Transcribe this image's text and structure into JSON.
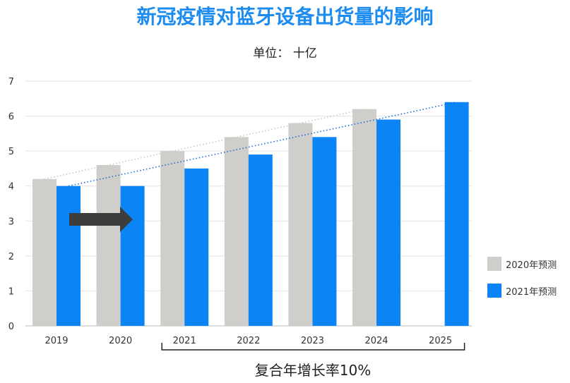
{
  "chart_data": {
    "type": "bar",
    "title": "新冠疫情对蓝牙设备出货量的影响",
    "subtitle": "单位： 十亿",
    "categories": [
      "2019",
      "2020",
      "2021",
      "2022",
      "2023",
      "2024",
      "2025"
    ],
    "series": [
      {
        "name": "2020年预测",
        "color": "#cfcecb",
        "values": [
          4.2,
          4.6,
          5.0,
          5.4,
          5.8,
          6.2,
          null
        ]
      },
      {
        "name": "2021年预测",
        "color": "#0b84f5",
        "values": [
          4.0,
          4.0,
          4.5,
          4.9,
          5.4,
          5.9,
          6.4
        ]
      }
    ],
    "ylim": [
      0,
      7
    ],
    "yticks": [
      "0",
      "1",
      "2",
      "3",
      "4",
      "5",
      "6",
      "7"
    ],
    "grid": true,
    "legend_position": "right",
    "annotations": {
      "cagr_label": "复合年增长率10%",
      "cagr_bracket_from": "2021",
      "cagr_bracket_to": "2025",
      "delay_arrow": "2019-2020"
    },
    "trendlines": [
      {
        "series": "2020年预测",
        "style": "dotted",
        "color": "#c8c8c8"
      },
      {
        "series": "2021年预测",
        "style": "dotted",
        "color": "#1a6fd1"
      }
    ]
  }
}
